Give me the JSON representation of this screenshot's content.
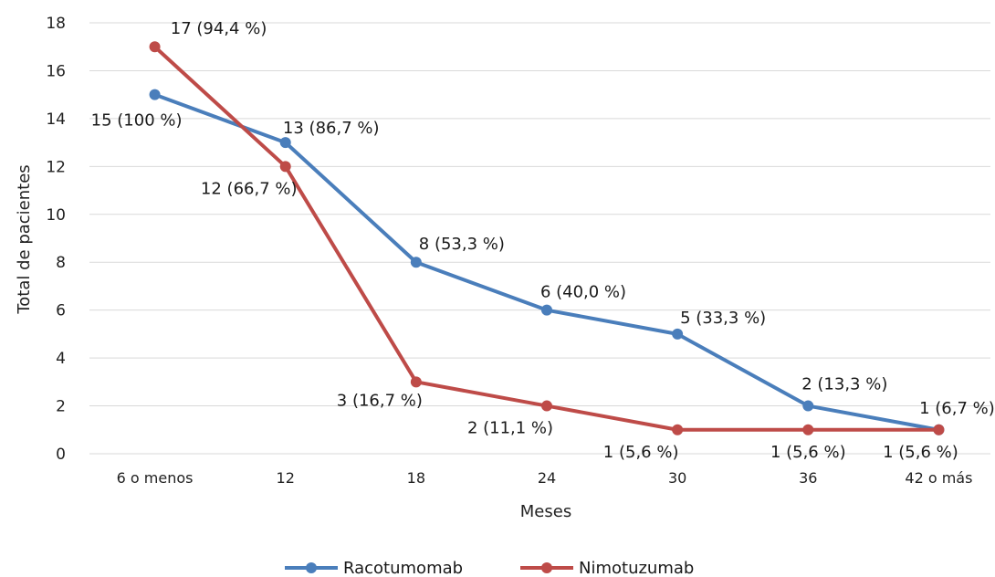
{
  "chart_data": {
    "type": "line",
    "title": "",
    "xlabel": "Meses",
    "ylabel": "Total de pacientes",
    "categories": [
      "6 o menos",
      "12",
      "18",
      "24",
      "30",
      "36",
      "42 o más"
    ],
    "ylim": [
      0,
      18
    ],
    "yticks": [
      "0",
      "2",
      "4",
      "6",
      "8",
      "10",
      "12",
      "14",
      "16",
      "18"
    ],
    "grid": true,
    "legend_position": "bottom",
    "series": [
      {
        "name": "Racotumomab",
        "color": "#4a7ebb",
        "values": [
          15,
          13,
          8,
          6,
          5,
          2,
          1
        ],
        "labels": [
          "15 (100 %)",
          "13 (86,7 %)",
          "8 (53,3 %)",
          "6 (40,0 %)",
          "5 (33,3 %)",
          "2 (13,3 %)",
          "1 (6,7 %)"
        ]
      },
      {
        "name": "Nimotuzumab",
        "color": "#be4b48",
        "values": [
          17,
          12,
          3,
          2,
          1,
          1,
          1
        ],
        "labels": [
          "17 (94,4 %)",
          "12 (66,7 %)",
          "3 (16,7 %)",
          "2 (11,1 %)",
          "1 (5,6 %)",
          "1 (5,6 %)",
          "1 (5,6 %)"
        ]
      }
    ]
  }
}
